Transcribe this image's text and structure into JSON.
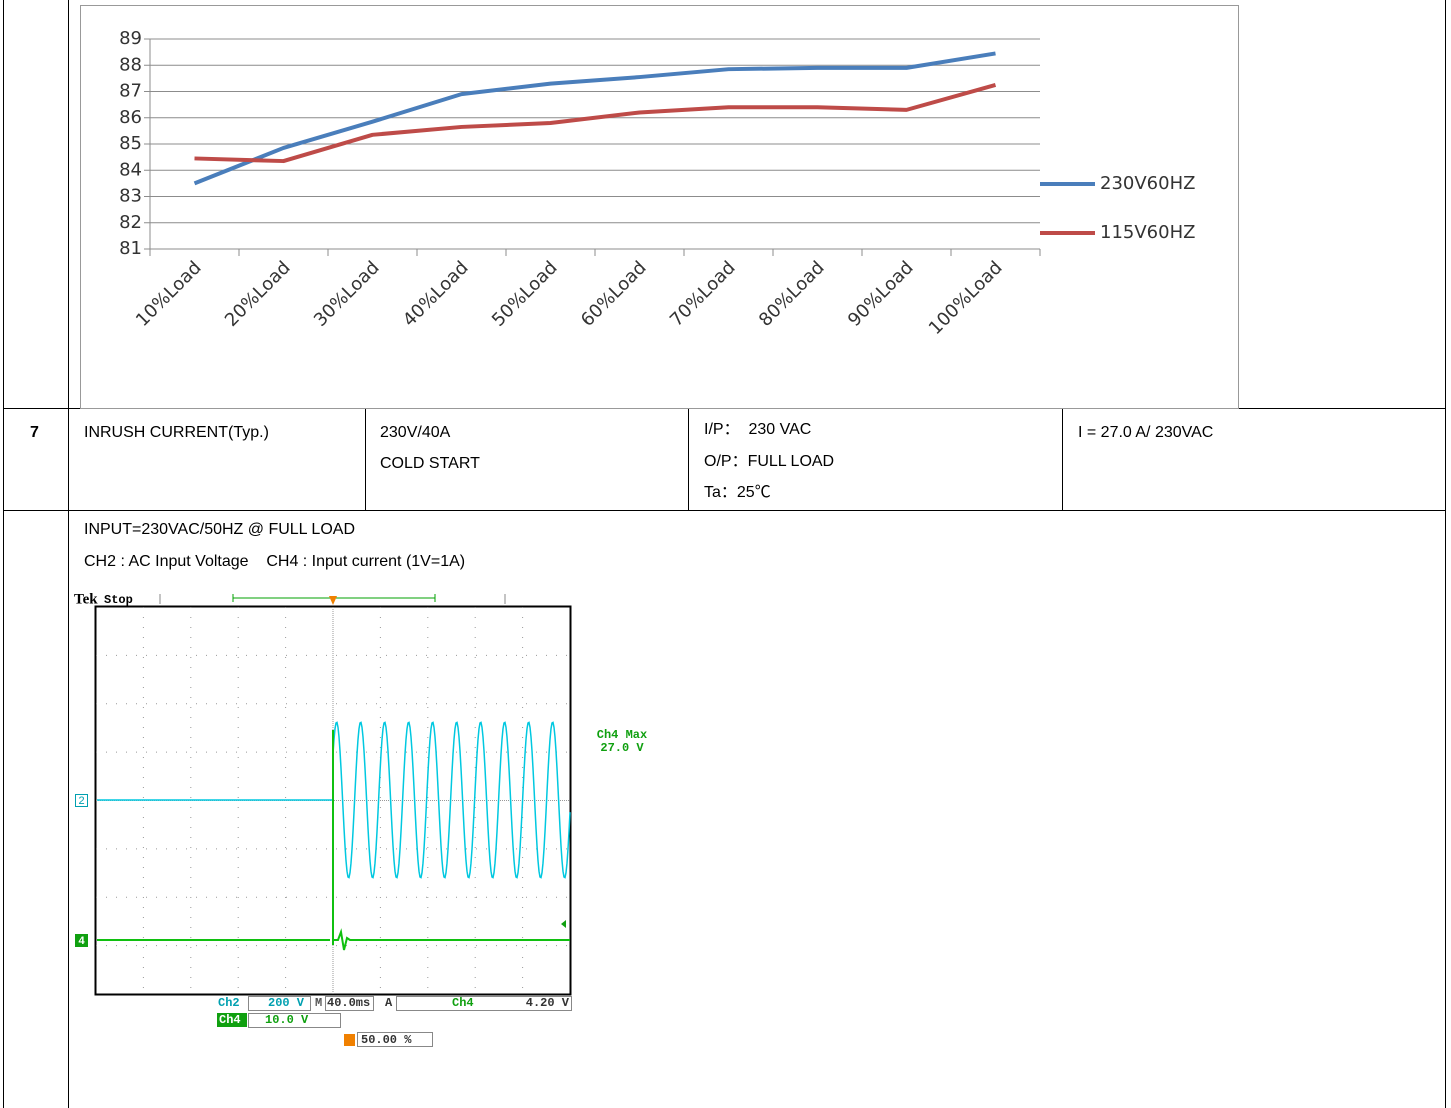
{
  "chart_data": {
    "type": "line",
    "categories": [
      "10%Load",
      "20%Load",
      "30%Load",
      "40%Load",
      "50%Load",
      "60%Load",
      "70%Load",
      "80%Load",
      "90%Load",
      "100%Load"
    ],
    "series": [
      {
        "name": "230V60HZ",
        "color": "#4a7ebb",
        "values": [
          83.5,
          84.85,
          85.85,
          86.9,
          87.3,
          87.55,
          87.85,
          87.9,
          87.9,
          88.45
        ]
      },
      {
        "name": "115V60HZ",
        "color": "#be4b48",
        "values": [
          84.45,
          84.35,
          85.35,
          85.65,
          85.8,
          86.2,
          86.4,
          86.4,
          86.3,
          87.25
        ]
      }
    ],
    "ylim": [
      81,
      89
    ],
    "yticks": [
      81,
      82,
      83,
      84,
      85,
      86,
      87,
      88,
      89
    ],
    "grid": true,
    "legend": "right"
  },
  "table": {
    "number": "7",
    "item": "INRUSH CURRENT(Typ.)",
    "condition": [
      "230V/40A",
      "COLD START"
    ],
    "setup": [
      "I/P：  230 VAC",
      "O/P：FULL LOAD",
      "Ta：25℃"
    ],
    "result": "I = 27.0 A/ 230VAC"
  },
  "notes": [
    "INPUT=230VAC/50HZ @ FULL LOAD",
    "CH2 : AC Input Voltage    CH4 : Input current (1V=1A)"
  ],
  "scope": {
    "brand": "Tek",
    "status": "Stop",
    "measure": [
      "Ch4 Max",
      "27.0 V"
    ],
    "ch2": "Ch2",
    "ch2_scale": "200 V",
    "time_prefix": "M",
    "timebase": "40.0ms",
    "trig_mode": "A",
    "trig_source": "Ch4",
    "trig_level": "4.20 V",
    "ch4": "Ch4",
    "ch4_scale": "10.0 V",
    "trig_marker": "T",
    "trig_position": "50.00 %",
    "ch2_marker": "2",
    "ch4_marker": "4"
  }
}
